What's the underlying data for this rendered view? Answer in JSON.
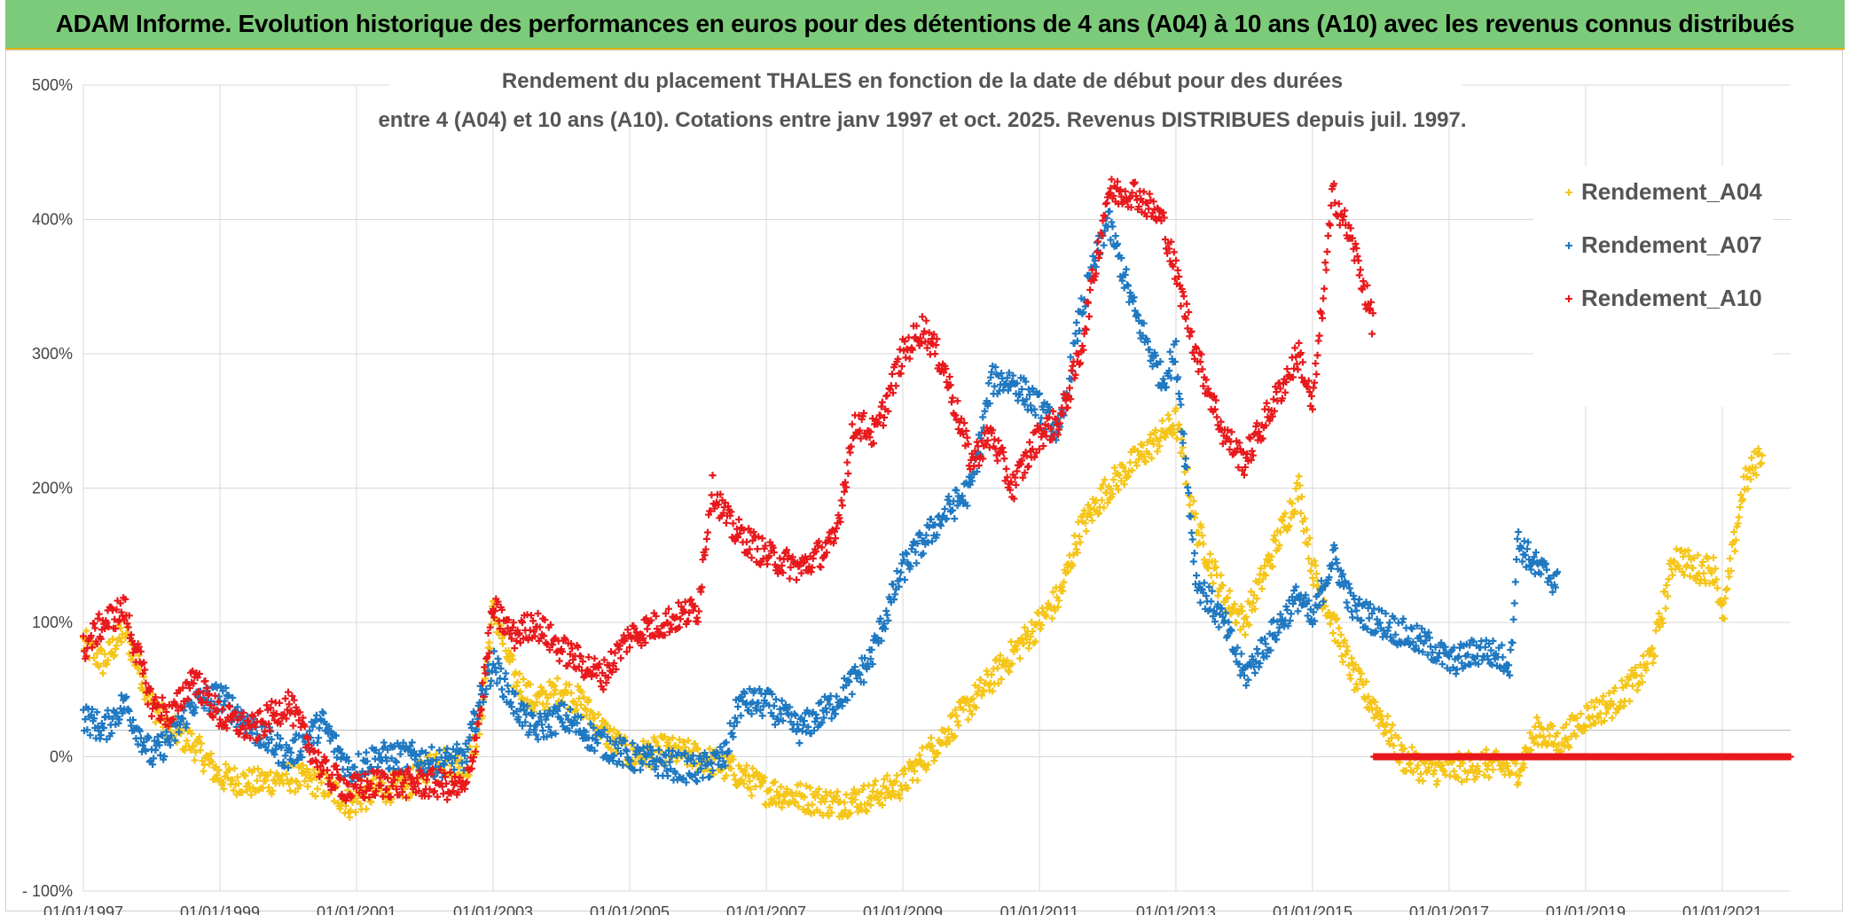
{
  "banner": {
    "title": "ADAM Informe. Evolution historique des performances en euros pour des détentions de 4 ans (A04) à 10 ans (A10) avec les revenus connus distribués"
  },
  "chart_data": {
    "type": "scatter",
    "title_lines": [
      "Rendement du placement THALES en fonction de la date de début pour des durées",
      "entre 4 (A04) et 10 ans (A10). Cotations entre janv 1997 et oct. 2025. Revenus DISTRIBUES depuis juil. 1997."
    ],
    "xlabel": "",
    "ylabel": "",
    "x_range": [
      1997.0,
      2022.0
    ],
    "ylim": [
      -100,
      500
    ],
    "y_ticks": [
      -100,
      0,
      100,
      200,
      300,
      400,
      500
    ],
    "y_tick_labels": [
      "- 100%",
      "0%",
      "100%",
      "200%",
      "300%",
      "400%",
      "500%"
    ],
    "x_ticks": [
      1997,
      1999,
      2001,
      2003,
      2005,
      2007,
      2009,
      2011,
      2013,
      2015,
      2017,
      2019,
      2021
    ],
    "x_tick_labels": [
      "01/01/1997",
      "01/01/1999",
      "01/01/2001",
      "01/01/2003",
      "01/01/2005",
      "01/01/2007",
      "01/01/2009",
      "01/01/2011",
      "01/01/2013",
      "01/01/2015",
      "01/01/2017",
      "01/01/2019",
      "01/01/2021"
    ],
    "grid": true,
    "marker": "+",
    "legend_position": "top-right",
    "series": [
      {
        "name": "Rendement_A04",
        "color": "#f5c518",
        "x": [
          1997.0,
          1997.3,
          1997.6,
          1998.0,
          1998.3,
          1998.6,
          1999.0,
          1999.5,
          2000.0,
          2000.5,
          2000.9,
          2001.3,
          2001.8,
          2002.2,
          2002.6,
          2002.8,
          2003.0,
          2003.3,
          2003.6,
          2004.0,
          2004.3,
          2004.6,
          2005.0,
          2005.5,
          2006.0,
          2006.5,
          2007.0,
          2007.5,
          2008.0,
          2008.5,
          2009.0,
          2009.5,
          2010.0,
          2010.5,
          2011.0,
          2011.3,
          2011.6,
          2012.0,
          2012.4,
          2012.8,
          2013.0,
          2013.3,
          2013.7,
          2014.0,
          2014.4,
          2014.8,
          2015.0,
          2015.3,
          2015.6,
          2016.0,
          2016.3,
          2016.7,
          2017.0,
          2017.5,
          2018.0,
          2018.3,
          2018.6,
          2019.0,
          2019.4,
          2019.8,
          2020.0,
          2020.3,
          2020.6,
          2020.9,
          2021.0,
          2021.3,
          2021.6
        ],
        "y": [
          85,
          70,
          95,
          40,
          20,
          10,
          -15,
          -20,
          -15,
          -20,
          -35,
          -25,
          -20,
          0,
          -10,
          20,
          110,
          60,
          40,
          50,
          40,
          20,
          0,
          5,
          0,
          -10,
          -25,
          -30,
          -35,
          -30,
          -20,
          10,
          40,
          70,
          100,
          120,
          170,
          200,
          220,
          240,
          250,
          170,
          120,
          100,
          150,
          200,
          140,
          100,
          60,
          30,
          0,
          -10,
          -10,
          -5,
          -10,
          20,
          10,
          30,
          40,
          60,
          80,
          150,
          140,
          140,
          100,
          200,
          230
        ]
      },
      {
        "name": "Rendement_A07",
        "color": "#1f78c1",
        "x": [
          1997.0,
          1997.3,
          1997.6,
          1998.0,
          1998.3,
          1998.6,
          1999.0,
          1999.5,
          2000.0,
          2000.5,
          2000.9,
          2001.3,
          2001.8,
          2002.2,
          2002.6,
          2002.8,
          2003.0,
          2003.3,
          2003.6,
          2004.0,
          2004.3,
          2004.6,
          2005.0,
          2005.5,
          2006.0,
          2006.4,
          2006.6,
          2007.0,
          2007.5,
          2008.0,
          2008.5,
          2009.0,
          2009.3,
          2009.6,
          2010.0,
          2010.3,
          2010.6,
          2011.0,
          2011.3,
          2011.6,
          2012.0,
          2012.4,
          2012.8,
          2013.0,
          2013.3,
          2013.7,
          2014.0,
          2014.4,
          2014.8,
          2015.0,
          2015.3,
          2015.6,
          2016.0,
          2016.4,
          2016.8,
          2017.0,
          2017.5,
          2017.9,
          2018.0,
          2018.3,
          2018.6
        ],
        "y": [
          30,
          20,
          40,
          0,
          15,
          40,
          45,
          20,
          0,
          25,
          -10,
          0,
          0,
          -5,
          0,
          40,
          70,
          40,
          20,
          30,
          20,
          10,
          0,
          -5,
          -10,
          0,
          40,
          40,
          20,
          40,
          70,
          140,
          160,
          180,
          200,
          280,
          280,
          260,
          240,
          330,
          400,
          330,
          280,
          300,
          130,
          100,
          60,
          90,
          120,
          100,
          150,
          110,
          100,
          90,
          80,
          70,
          80,
          70,
          160,
          140,
          130
        ]
      },
      {
        "name": "Rendement_A10",
        "color": "#e8191c",
        "x": [
          1997.0,
          1997.3,
          1997.6,
          1998.0,
          1998.3,
          1998.6,
          1999.0,
          1999.5,
          2000.0,
          2000.5,
          2000.9,
          2001.3,
          2001.8,
          2002.2,
          2002.6,
          2002.8,
          2003.0,
          2003.3,
          2003.6,
          2004.0,
          2004.3,
          2004.6,
          2005.0,
          2005.5,
          2006.0,
          2006.2,
          2006.5,
          2007.0,
          2007.5,
          2008.0,
          2008.3,
          2008.6,
          2009.0,
          2009.3,
          2009.6,
          2010.0,
          2010.3,
          2010.6,
          2011.0,
          2011.3,
          2011.6,
          2012.0,
          2012.4,
          2012.8,
          2013.0,
          2013.3,
          2013.7,
          2014.0,
          2014.4,
          2014.8,
          2015.0,
          2015.3,
          2015.6,
          2015.9
        ],
        "y": [
          80,
          100,
          110,
          40,
          30,
          60,
          30,
          20,
          40,
          -10,
          -25,
          -20,
          -20,
          -20,
          -25,
          30,
          110,
          90,
          100,
          80,
          70,
          60,
          90,
          100,
          110,
          200,
          170,
          150,
          140,
          160,
          250,
          240,
          300,
          320,
          290,
          220,
          240,
          200,
          240,
          250,
          300,
          420,
          420,
          400,
          360,
          300,
          240,
          220,
          260,
          300,
          260,
          420,
          380,
          320
        ]
      }
    ],
    "a10_flat": {
      "x_start": 2015.9,
      "x_end": 2022.0,
      "y": 0
    }
  }
}
